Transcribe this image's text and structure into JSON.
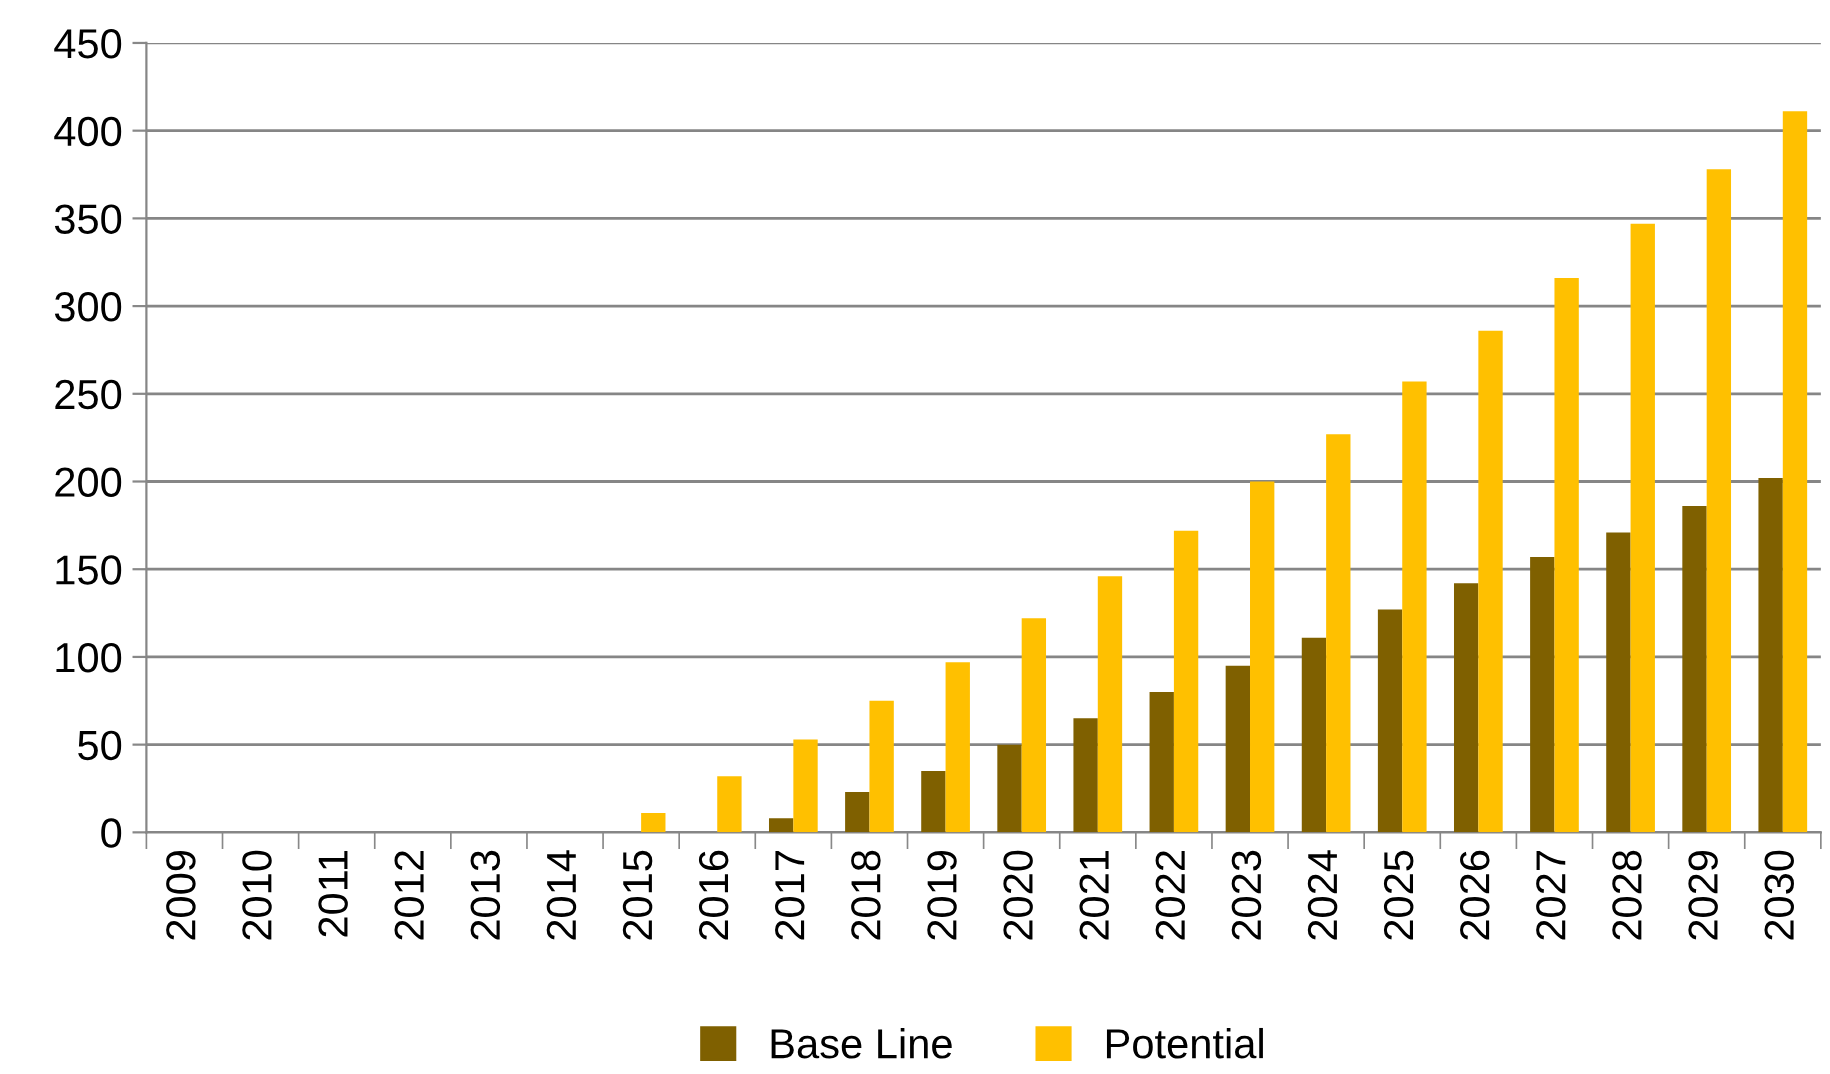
{
  "chart_data": {
    "type": "bar",
    "categories": [
      "2009",
      "2010",
      "2011",
      "2012",
      "2013",
      "2014",
      "2015",
      "2016",
      "2017",
      "2018",
      "2019",
      "2020",
      "2021",
      "2022",
      "2023",
      "2024",
      "2025",
      "2026",
      "2027",
      "2028",
      "2029",
      "2030"
    ],
    "series": [
      {
        "name": "Base Line",
        "color": "#7f6000",
        "values": [
          0,
          0,
          0,
          0,
          0,
          0,
          0,
          0,
          8,
          23,
          35,
          50,
          65,
          80,
          95,
          111,
          127,
          142,
          157,
          171,
          186,
          202
        ]
      },
      {
        "name": "Potential",
        "color": "#ffc000",
        "values": [
          0,
          0,
          0,
          0,
          0,
          0,
          11,
          32,
          53,
          75,
          97,
          122,
          146,
          172,
          200,
          227,
          257,
          286,
          316,
          347,
          378,
          411
        ]
      }
    ],
    "ylim": [
      0,
      450
    ],
    "yticks": [
      0,
      50,
      100,
      150,
      200,
      250,
      300,
      350,
      400,
      450
    ],
    "grid": "y",
    "legend": "bottom"
  }
}
